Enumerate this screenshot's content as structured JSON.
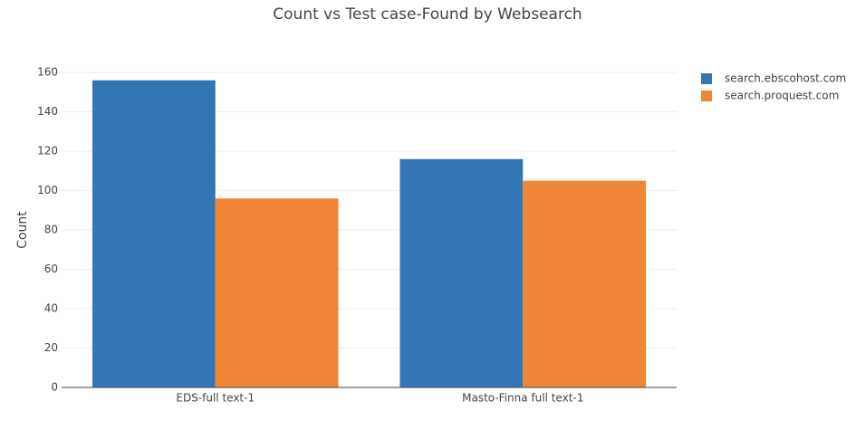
{
  "chart_data": {
    "type": "bar",
    "title": "Count vs Test case-Found by Websearch",
    "y_label": "Count",
    "categories": [
      "EDS-full text-1",
      "Masto-Finna full text-1"
    ],
    "series": [
      {
        "name": "search.ebscohost.com",
        "color": "#3277b3",
        "values": [
          156,
          116
        ]
      },
      {
        "name": "search.proquest.com",
        "color": "#ef8636",
        "values": [
          96,
          105
        ]
      }
    ],
    "ylim": [
      0,
      160
    ],
    "yticks": [
      0,
      20,
      40,
      60,
      80,
      100,
      120,
      140,
      160
    ],
    "grid": true,
    "legend": "right"
  }
}
